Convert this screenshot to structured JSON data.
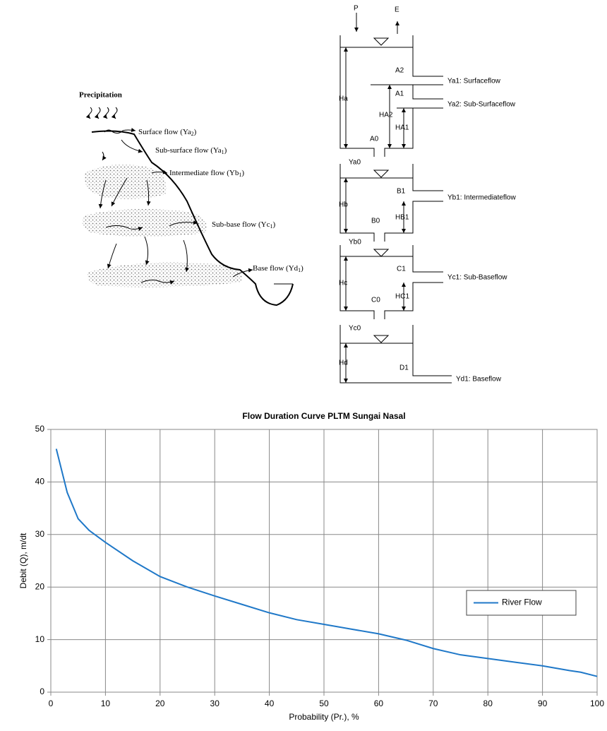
{
  "diagram": {
    "sketch": {
      "precipitation": "Precipitation",
      "surface": [
        "Surface flow (Ya",
        "2",
        ")"
      ],
      "subsurface": [
        "Sub-surface flow (Ya",
        "1",
        ")"
      ],
      "intermediate": [
        "Intermediate flow (Yb",
        "1",
        ")"
      ],
      "subbase": [
        "Sub-base flow (Yc",
        "1",
        ")"
      ],
      "base": [
        "Base flow (Yd",
        "1",
        ")"
      ]
    },
    "tanks": {
      "p": "P",
      "e": "E",
      "a2": "A2",
      "a1": "A1",
      "a0": "A0",
      "ha": "Ha",
      "ha2": "HA2",
      "ha1": "HA1",
      "ya1": "Ya1: Surfaceflow",
      "ya2": "Ya2: Sub-Surfaceflow",
      "ya0": "Ya0",
      "b1": "B1",
      "b0": "B0",
      "hb": "Hb",
      "hb1": "HB1",
      "yb1": "Yb1: Intermediateflow",
      "yb0": "Yb0",
      "c1": "C1",
      "c0": "C0",
      "hc": "Hc",
      "hc1": "HC1",
      "yc1": "Yc1: Sub-Baseflow",
      "yc0": "Yc0",
      "d1": "D1",
      "hd": "Hd",
      "yd1": "Yd1: Baseflow"
    }
  },
  "chart_data": {
    "type": "line",
    "title": "Flow Duration Curve PLTM Sungai Nasal",
    "x_label": "Probability (Pr.), %",
    "y_label": "Debit (Q), m/dt",
    "x": [
      1,
      3,
      5,
      7,
      10,
      15,
      20,
      25,
      30,
      35,
      40,
      45,
      50,
      55,
      60,
      65,
      70,
      75,
      80,
      85,
      90,
      95,
      97,
      100
    ],
    "series": [
      {
        "name": "River Flow",
        "color": "#1f78c8",
        "values": [
          46.3,
          38,
          33,
          30.8,
          28.5,
          25,
          22,
          20,
          18.3,
          16.7,
          15.1,
          13.8,
          12.9,
          12,
          11.1,
          9.9,
          8.3,
          7.1,
          6.4,
          5.7,
          5,
          4.1,
          3.8,
          3
        ]
      }
    ],
    "xlim": [
      0,
      100
    ],
    "ylim": [
      0,
      50
    ],
    "xticks": [
      0,
      10,
      20,
      30,
      40,
      50,
      60,
      70,
      80,
      90,
      100
    ],
    "yticks": [
      0,
      10,
      20,
      30,
      40,
      50
    ],
    "grid": true,
    "legend": "right"
  }
}
